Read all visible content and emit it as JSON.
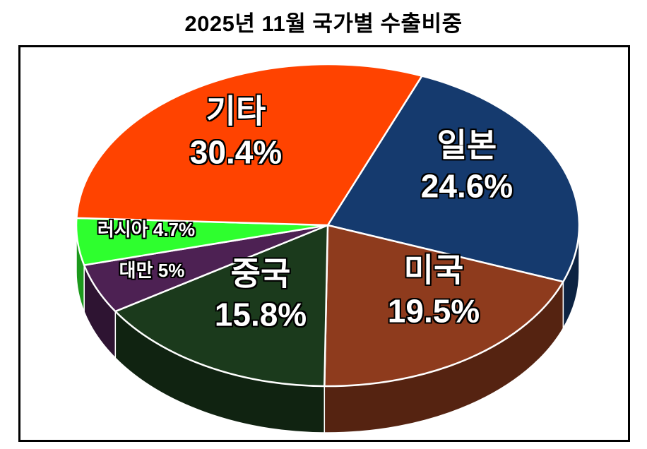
{
  "title": "2025년 11월 국가별 수출비중",
  "chart_data": {
    "type": "pie",
    "title": "2025년 11월 국가별 수출비중",
    "style": "3d-pie",
    "unit": "%",
    "legend": "none",
    "start_angle_deg_clockwise_from_top": 22,
    "slices": [
      {
        "label": "일본",
        "value": 24.6,
        "display": "24.6%",
        "color": "#153a6e"
      },
      {
        "label": "미국",
        "value": 19.5,
        "display": "19.5%",
        "color": "#8e3b1d"
      },
      {
        "label": "중국",
        "value": 15.8,
        "display": "15.8%",
        "color": "#1b3a1c"
      },
      {
        "label": "대만",
        "value": 5.0,
        "display": "5%",
        "color": "#4d2153"
      },
      {
        "label": "러시아",
        "value": 4.7,
        "display": "4.7%",
        "color": "#2eff2e"
      },
      {
        "label": "기타",
        "value": 30.4,
        "display": "30.4%",
        "color": "#ff4300"
      }
    ]
  }
}
